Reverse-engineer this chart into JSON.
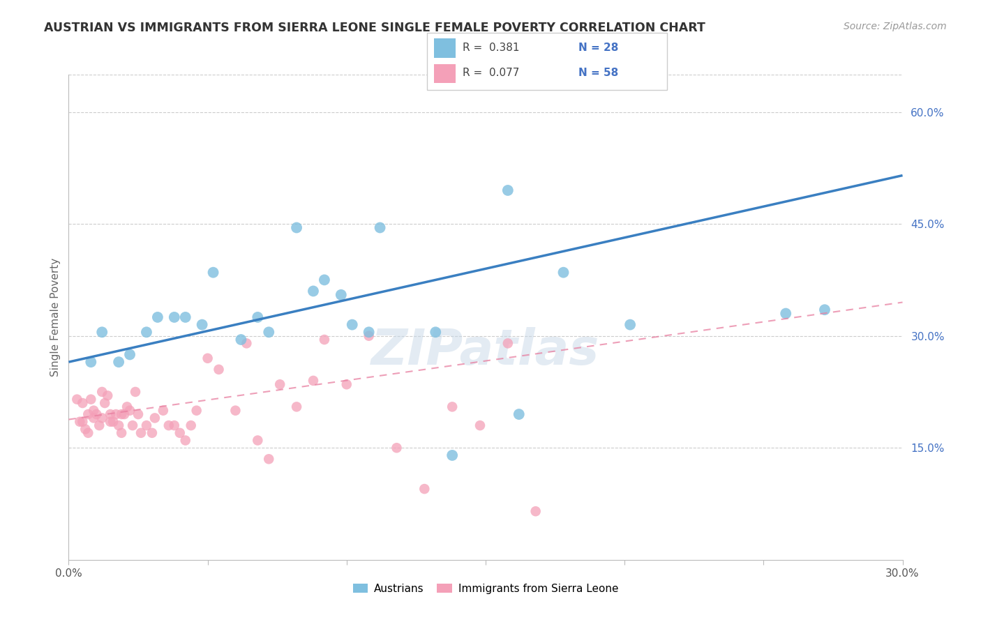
{
  "title": "AUSTRIAN VS IMMIGRANTS FROM SIERRA LEONE SINGLE FEMALE POVERTY CORRELATION CHART",
  "source": "Source: ZipAtlas.com",
  "ylabel": "Single Female Poverty",
  "xlim": [
    0.0,
    0.3
  ],
  "ylim": [
    0.0,
    0.65
  ],
  "x_ticks": [
    0.0,
    0.05,
    0.1,
    0.15,
    0.2,
    0.25,
    0.3
  ],
  "y_ticks_right": [
    0.15,
    0.3,
    0.45,
    0.6
  ],
  "y_tick_labels_right": [
    "15.0%",
    "30.0%",
    "45.0%",
    "60.0%"
  ],
  "blue_color": "#7fbfdf",
  "pink_color": "#f4a0b8",
  "line_blue": "#3a7fc1",
  "line_pink": "#e87fa0",
  "watermark": "ZIPatlas",
  "austrians_x": [
    0.008,
    0.012,
    0.018,
    0.022,
    0.028,
    0.032,
    0.038,
    0.042,
    0.048,
    0.052,
    0.062,
    0.068,
    0.072,
    0.082,
    0.088,
    0.092,
    0.098,
    0.102,
    0.108,
    0.112,
    0.132,
    0.138,
    0.158,
    0.162,
    0.178,
    0.202,
    0.258,
    0.272
  ],
  "austrians_y": [
    0.265,
    0.305,
    0.265,
    0.275,
    0.305,
    0.325,
    0.325,
    0.325,
    0.315,
    0.385,
    0.295,
    0.325,
    0.305,
    0.445,
    0.36,
    0.375,
    0.355,
    0.315,
    0.305,
    0.445,
    0.305,
    0.14,
    0.495,
    0.195,
    0.385,
    0.315,
    0.33,
    0.335
  ],
  "sl_x": [
    0.003,
    0.004,
    0.005,
    0.005,
    0.006,
    0.007,
    0.007,
    0.008,
    0.009,
    0.009,
    0.01,
    0.011,
    0.012,
    0.012,
    0.013,
    0.014,
    0.015,
    0.015,
    0.016,
    0.017,
    0.018,
    0.019,
    0.019,
    0.02,
    0.021,
    0.022,
    0.023,
    0.024,
    0.025,
    0.026,
    0.028,
    0.03,
    0.031,
    0.034,
    0.036,
    0.038,
    0.04,
    0.042,
    0.044,
    0.046,
    0.05,
    0.054,
    0.06,
    0.064,
    0.068,
    0.072,
    0.076,
    0.082,
    0.088,
    0.092,
    0.1,
    0.108,
    0.118,
    0.128,
    0.138,
    0.148,
    0.158,
    0.168
  ],
  "sl_y": [
    0.215,
    0.185,
    0.21,
    0.185,
    0.175,
    0.17,
    0.195,
    0.215,
    0.19,
    0.2,
    0.195,
    0.18,
    0.19,
    0.225,
    0.21,
    0.22,
    0.185,
    0.195,
    0.185,
    0.195,
    0.18,
    0.17,
    0.195,
    0.195,
    0.205,
    0.2,
    0.18,
    0.225,
    0.195,
    0.17,
    0.18,
    0.17,
    0.19,
    0.2,
    0.18,
    0.18,
    0.17,
    0.16,
    0.18,
    0.2,
    0.27,
    0.255,
    0.2,
    0.29,
    0.16,
    0.135,
    0.235,
    0.205,
    0.24,
    0.295,
    0.235,
    0.3,
    0.15,
    0.095,
    0.205,
    0.18,
    0.29,
    0.065
  ],
  "blue_line_x": [
    0.0,
    0.3
  ],
  "blue_line_y": [
    0.265,
    0.515
  ],
  "pink_line_x": [
    0.0,
    0.3
  ],
  "pink_line_y": [
    0.188,
    0.345
  ]
}
